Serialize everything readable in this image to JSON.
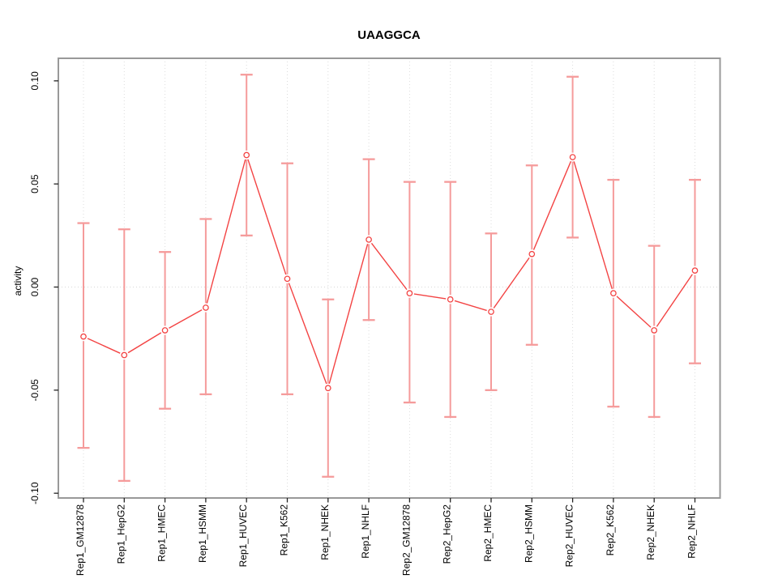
{
  "page": {
    "background": "#ffffff"
  },
  "chart_data": {
    "type": "line",
    "subtype": "points-with-error-bars",
    "title": "UAAGGCA",
    "xlabel": "",
    "ylabel": "activity",
    "ylim": [
      -0.103,
      0.111
    ],
    "ytick_values": [
      0.1,
      0.05,
      0.0,
      -0.05,
      -0.1
    ],
    "ytick_labels": [
      "0.10",
      "0.05",
      "0.00",
      "-0.05",
      "-0.10"
    ],
    "grid": {
      "vertical_gridlines": "dotted, one per category",
      "horizontal_gridlines": "dotted zero line only"
    },
    "legend": "none",
    "categories": [
      "Rep1_GM12878",
      "Rep1_HepG2",
      "Rep1_HMEC",
      "Rep1_HSMM",
      "Rep1_HUVEC",
      "Rep1_K562",
      "Rep1_NHEK",
      "Rep1_NHLF",
      "Rep2_GM12878",
      "Rep2_HepG2",
      "Rep2_HMEC",
      "Rep2_HSMM",
      "Rep2_HUVEC",
      "Rep2_K562",
      "Rep2_NHEK",
      "Rep2_NHLF"
    ],
    "series": [
      {
        "name": "activity",
        "values": [
          -0.024,
          -0.033,
          -0.021,
          -0.01,
          0.064,
          0.004,
          -0.049,
          0.023,
          -0.003,
          -0.006,
          -0.012,
          0.016,
          0.063,
          -0.003,
          -0.021,
          0.008
        ],
        "upper": [
          0.031,
          0.028,
          0.017,
          0.033,
          0.103,
          0.06,
          -0.006,
          0.062,
          0.051,
          0.051,
          0.026,
          0.059,
          0.102,
          0.052,
          0.02,
          0.052
        ],
        "lower": [
          -0.078,
          -0.094,
          -0.059,
          -0.052,
          0.025,
          -0.052,
          -0.092,
          -0.016,
          -0.056,
          -0.063,
          -0.05,
          -0.028,
          0.024,
          -0.058,
          -0.063,
          -0.037
        ]
      }
    ],
    "colors": {
      "line": "#f34343",
      "point": "#f34343",
      "point_fill": "#ffffff",
      "error_bar": "#f59b9b",
      "gridline": "#dcdcdc",
      "zero_line": "#d8d8d8",
      "border": "#999999",
      "tick": "#222222",
      "text": "#000000"
    }
  }
}
